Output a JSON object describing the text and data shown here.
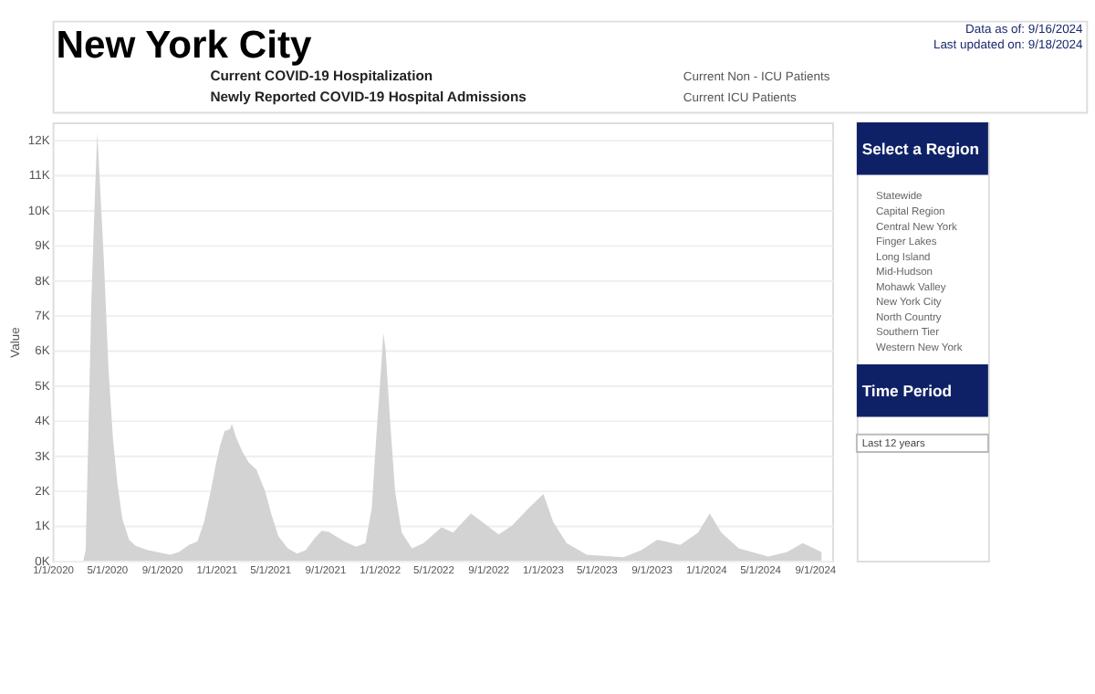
{
  "chart_data": {
    "type": "area",
    "title": "New York City",
    "ylabel": "Value",
    "grid": "y",
    "x": [
      "2020-03-10",
      "2020-03-15",
      "2020-03-20",
      "2020-03-28",
      "2020-04-05",
      "2020-04-10",
      "2020-04-15",
      "2020-04-25",
      "2020-05-05",
      "2020-05-15",
      "2020-05-25",
      "2020-06-05",
      "2020-06-20",
      "2020-07-05",
      "2020-08-01",
      "2020-09-01",
      "2020-09-20",
      "2020-10-10",
      "2020-11-01",
      "2020-11-20",
      "2020-12-05",
      "2020-12-20",
      "2021-01-01",
      "2021-01-10",
      "2021-01-20",
      "2021-02-01",
      "2021-02-05",
      "2021-02-15",
      "2021-03-01",
      "2021-03-15",
      "2021-04-01",
      "2021-04-20",
      "2021-05-05",
      "2021-05-20",
      "2021-06-10",
      "2021-07-01",
      "2021-07-20",
      "2021-08-10",
      "2021-08-25",
      "2021-09-10",
      "2021-09-25",
      "2021-10-15",
      "2021-11-10",
      "2021-12-01",
      "2021-12-15",
      "2021-12-25",
      "2022-01-05",
      "2022-01-10",
      "2022-01-15",
      "2022-01-25",
      "2022-02-05",
      "2022-02-20",
      "2022-03-15",
      "2022-04-10",
      "2022-05-20",
      "2022-06-15",
      "2022-07-25",
      "2022-09-25",
      "2022-10-25",
      "2022-12-01",
      "2023-01-03",
      "2023-01-25",
      "2023-02-24",
      "2023-04-10",
      "2023-07-01",
      "2023-08-10",
      "2023-09-15",
      "2023-11-05",
      "2023-12-15",
      "2024-01-10",
      "2024-02-05",
      "2024-03-15",
      "2024-05-20",
      "2024-07-01",
      "2024-08-05",
      "2024-09-16"
    ],
    "series": [
      {
        "color": "#d3d3d3",
        "values": [
          0,
          300,
          3000,
          7500,
          10500,
          12200,
          11000,
          8500,
          5500,
          3500,
          2200,
          1200,
          600,
          420,
          300,
          220,
          170,
          250,
          450,
          550,
          1100,
          2000,
          2800,
          3300,
          3700,
          3750,
          3900,
          3500,
          3100,
          2800,
          2600,
          2000,
          1300,
          700,
          350,
          200,
          300,
          650,
          850,
          820,
          700,
          550,
          400,
          500,
          1500,
          3500,
          5500,
          6500,
          6000,
          4000,
          2000,
          800,
          350,
          500,
          950,
          800,
          1350,
          750,
          1000,
          1500,
          1900,
          1100,
          500,
          170,
          100,
          300,
          600,
          450,
          800,
          1350,
          800,
          350,
          120,
          250,
          500,
          250
        ]
      }
    ],
    "xlim": [
      "2020-01-01",
      "2024-10-10"
    ],
    "xticks": [
      {
        "value": "2020-01-01",
        "label": "1/1/2020"
      },
      {
        "value": "2020-05-01",
        "label": "5/1/2020"
      },
      {
        "value": "2020-09-01",
        "label": "9/1/2020"
      },
      {
        "value": "2021-01-01",
        "label": "1/1/2021"
      },
      {
        "value": "2021-05-01",
        "label": "5/1/2021"
      },
      {
        "value": "2021-09-01",
        "label": "9/1/2021"
      },
      {
        "value": "2022-01-01",
        "label": "1/1/2022"
      },
      {
        "value": "2022-05-01",
        "label": "5/1/2022"
      },
      {
        "value": "2022-09-01",
        "label": "9/1/2022"
      },
      {
        "value": "2023-01-01",
        "label": "1/1/2023"
      },
      {
        "value": "2023-05-01",
        "label": "5/1/2023"
      },
      {
        "value": "2023-09-01",
        "label": "9/1/2023"
      },
      {
        "value": "2024-01-01",
        "label": "1/1/2024"
      },
      {
        "value": "2024-05-01",
        "label": "5/1/2024"
      },
      {
        "value": "2024-09-01",
        "label": "9/1/2024"
      }
    ],
    "ylim": [
      0,
      12500
    ],
    "yticks": [
      {
        "value": 0,
        "label": "0K"
      },
      {
        "value": 1000,
        "label": "1K"
      },
      {
        "value": 2000,
        "label": "2K"
      },
      {
        "value": 3000,
        "label": "3K"
      },
      {
        "value": 4000,
        "label": "4K"
      },
      {
        "value": 5000,
        "label": "5K"
      },
      {
        "value": 6000,
        "label": "6K"
      },
      {
        "value": 7000,
        "label": "7K"
      },
      {
        "value": 8000,
        "label": "8K"
      },
      {
        "value": 9000,
        "label": "9K"
      },
      {
        "value": 10000,
        "label": "10K"
      },
      {
        "value": 11000,
        "label": "11K"
      },
      {
        "value": 12000,
        "label": "12K"
      }
    ],
    "annotations": [
      "Current COVID-19 Hospitalization",
      "Newly Reported COVID-19 Hospital Admissions",
      "Current Non - ICU Patients",
      "Current ICU Patients",
      "Data as of: 9/16/2024",
      "Last updated on: 9/18/2024",
      "Select a Region",
      "Statewide",
      "Capital Region",
      "Central New York",
      "Finger Lakes",
      "Long Island",
      "Mid-Hudson",
      "Mohawk Valley",
      "New York City",
      "North Country",
      "Southern Tier",
      "Western New York",
      "Time Period",
      "Last 12 years"
    ]
  }
}
